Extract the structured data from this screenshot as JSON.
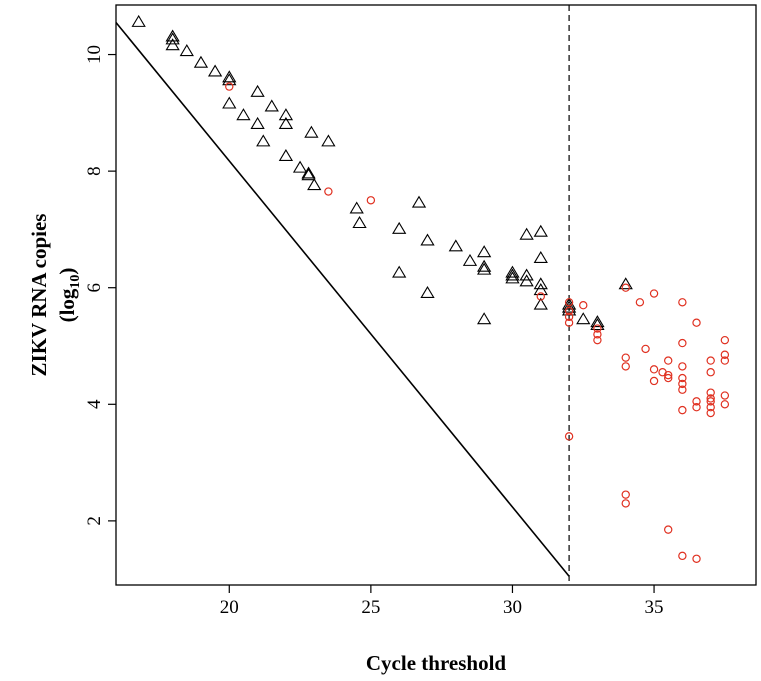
{
  "chart_data": {
    "type": "scatter",
    "xlabel": "Cycle threshold",
    "ylabel": "ZIKV RNA copies",
    "ylabel_line2": "(log",
    "ylabel_sub": "10",
    "ylabel_close": ")",
    "xlim": [
      16,
      38.6
    ],
    "ylim": [
      0.9,
      10.85
    ],
    "x_ticks": [
      20,
      25,
      30,
      35
    ],
    "y_ticks": [
      2,
      4,
      6,
      8,
      10
    ],
    "grid": false,
    "legend": "none",
    "colors": {
      "triangle": "#000000",
      "circle": "#e03020",
      "line": "#000000"
    },
    "reference_line": {
      "points": [
        [
          16,
          10.55
        ],
        [
          32,
          1.05
        ]
      ]
    },
    "cutoff_line": {
      "x": 32,
      "style": "dashed"
    },
    "series": [
      {
        "marker": "triangle",
        "points": [
          [
            16.8,
            10.55
          ],
          [
            18,
            10.3
          ],
          [
            18,
            10.25
          ],
          [
            18,
            10.15
          ],
          [
            18.5,
            10.05
          ],
          [
            19,
            9.85
          ],
          [
            19.5,
            9.7
          ],
          [
            20,
            9.6
          ],
          [
            20,
            9.55
          ],
          [
            20,
            9.15
          ],
          [
            20.5,
            8.95
          ],
          [
            21,
            9.35
          ],
          [
            21,
            8.8
          ],
          [
            21.2,
            8.5
          ],
          [
            21.5,
            9.1
          ],
          [
            22,
            8.95
          ],
          [
            22,
            8.8
          ],
          [
            22,
            8.25
          ],
          [
            22.5,
            8.05
          ],
          [
            22.8,
            7.95
          ],
          [
            22.8,
            7.92
          ],
          [
            23,
            7.75
          ],
          [
            22.9,
            8.65
          ],
          [
            23.5,
            8.5
          ],
          [
            24.5,
            7.35
          ],
          [
            24.6,
            7.1
          ],
          [
            26,
            7.0
          ],
          [
            26,
            6.25
          ],
          [
            26.7,
            7.45
          ],
          [
            27,
            6.8
          ],
          [
            27,
            5.9
          ],
          [
            28,
            6.7
          ],
          [
            28.5,
            6.45
          ],
          [
            29,
            6.6
          ],
          [
            29,
            6.35
          ],
          [
            29,
            6.3
          ],
          [
            29,
            5.45
          ],
          [
            30,
            6.25
          ],
          [
            30,
            6.2
          ],
          [
            30,
            6.15
          ],
          [
            30.5,
            6.2
          ],
          [
            30.5,
            6.1
          ],
          [
            30.5,
            6.9
          ],
          [
            31,
            6.95
          ],
          [
            31,
            6.5
          ],
          [
            31,
            6.05
          ],
          [
            31,
            5.95
          ],
          [
            31,
            5.7
          ],
          [
            32,
            5.7
          ],
          [
            32,
            5.65
          ],
          [
            32,
            5.6
          ],
          [
            32.5,
            5.45
          ],
          [
            33,
            5.4
          ],
          [
            33,
            5.35
          ],
          [
            34,
            6.05
          ]
        ]
      },
      {
        "marker": "circle",
        "points": [
          [
            20,
            9.45
          ],
          [
            23.5,
            7.65
          ],
          [
            25,
            7.5
          ],
          [
            31,
            5.85
          ],
          [
            32,
            5.75
          ],
          [
            32,
            5.6
          ],
          [
            32,
            5.5
          ],
          [
            32,
            5.4
          ],
          [
            32,
            3.45
          ],
          [
            32.5,
            5.7
          ],
          [
            33,
            5.3
          ],
          [
            33,
            5.2
          ],
          [
            33,
            5.1
          ],
          [
            34,
            6.0
          ],
          [
            34,
            4.8
          ],
          [
            34,
            4.65
          ],
          [
            34,
            2.45
          ],
          [
            34,
            2.3
          ],
          [
            34.5,
            5.75
          ],
          [
            34.7,
            4.95
          ],
          [
            35,
            5.9
          ],
          [
            35,
            4.6
          ],
          [
            35,
            4.4
          ],
          [
            35.3,
            4.55
          ],
          [
            35.5,
            4.75
          ],
          [
            35.5,
            4.5
          ],
          [
            35.5,
            4.45
          ],
          [
            35.5,
            1.85
          ],
          [
            36,
            5.75
          ],
          [
            36,
            5.05
          ],
          [
            36,
            4.65
          ],
          [
            36,
            4.45
          ],
          [
            36,
            4.35
          ],
          [
            36,
            4.25
          ],
          [
            36,
            3.9
          ],
          [
            36,
            1.4
          ],
          [
            36.5,
            5.4
          ],
          [
            36.5,
            4.05
          ],
          [
            36.5,
            3.95
          ],
          [
            36.5,
            1.35
          ],
          [
            37,
            4.75
          ],
          [
            37,
            4.55
          ],
          [
            37,
            4.2
          ],
          [
            37,
            4.1
          ],
          [
            37,
            4.05
          ],
          [
            37,
            3.95
          ],
          [
            37,
            3.85
          ],
          [
            37.5,
            5.1
          ],
          [
            37.5,
            4.85
          ],
          [
            37.5,
            4.75
          ],
          [
            37.5,
            4.15
          ],
          [
            37.5,
            4.0
          ]
        ]
      }
    ]
  }
}
